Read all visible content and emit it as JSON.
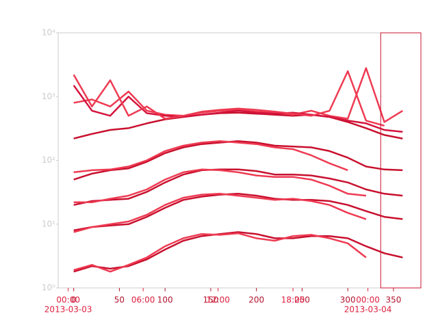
{
  "chart_data": {
    "type": "line",
    "log_y": true,
    "ylim": [
      1,
      10000
    ],
    "yticks": [
      {
        "value": 1,
        "label": "10⁰"
      },
      {
        "value": 10,
        "label": "10¹"
      },
      {
        "value": 100,
        "label": "10²"
      },
      {
        "value": 1000,
        "label": "10³"
      },
      {
        "value": 10000,
        "label": "10⁴"
      }
    ],
    "xlim": [
      -17,
      380
    ],
    "xticks": [
      0,
      50,
      100,
      150,
      200,
      250,
      300,
      350
    ],
    "x2ticks": [
      {
        "value": -6,
        "label": "00:00"
      },
      {
        "value": 76,
        "label": "06:00"
      },
      {
        "value": 158,
        "label": "12:00"
      },
      {
        "value": 240,
        "label": "18:00"
      },
      {
        "value": 322,
        "label": "00:00"
      }
    ],
    "x2dates": [
      {
        "value": -6,
        "label": "2013-03-03"
      },
      {
        "value": 322,
        "label": "2013-03-04"
      }
    ],
    "span": [
      336,
      380
    ],
    "x": [
      0,
      20,
      40,
      60,
      80,
      100,
      120,
      140,
      160,
      180,
      200,
      220,
      240,
      260,
      280,
      300,
      320,
      340,
      360
    ],
    "series": [
      {
        "color": "#c8102e",
        "values": [
          1.8,
          2.2,
          2.0,
          2.2,
          2.8,
          4.0,
          5.5,
          6.5,
          7,
          7.5,
          7,
          6,
          6,
          6.5,
          6.5,
          6,
          4.5,
          3.5,
          3
        ]
      },
      {
        "color": "#ee3a52",
        "values": [
          1.9,
          2.3,
          1.8,
          2.3,
          3.0,
          4.5,
          6.0,
          7.0,
          6.8,
          7.2,
          6.0,
          5.5,
          6.5,
          6.8,
          6.0,
          5.0,
          3.0,
          null,
          null
        ]
      },
      {
        "color": "#c8102e",
        "values": [
          8,
          9,
          9.5,
          10,
          13,
          18,
          24,
          27,
          29,
          30,
          28,
          25,
          24,
          24,
          23,
          20,
          16,
          13,
          12
        ]
      },
      {
        "color": "#ee3a52",
        "values": [
          7.5,
          9,
          10,
          11,
          14,
          20,
          26,
          29,
          30,
          28,
          26,
          24,
          25,
          23,
          20,
          15,
          12,
          null,
          null
        ]
      },
      {
        "color": "#c8102e",
        "values": [
          20,
          23,
          24,
          25,
          32,
          45,
          60,
          70,
          72,
          72,
          68,
          60,
          60,
          58,
          52,
          45,
          35,
          30,
          28
        ]
      },
      {
        "color": "#ee3a52",
        "values": [
          22,
          22,
          25,
          28,
          35,
          50,
          65,
          72,
          70,
          65,
          58,
          55,
          55,
          50,
          40,
          30,
          28,
          null,
          null
        ]
      },
      {
        "color": "#c8102e",
        "values": [
          50,
          62,
          70,
          75,
          95,
          130,
          160,
          180,
          190,
          200,
          190,
          170,
          165,
          160,
          140,
          110,
          80,
          72,
          70
        ]
      },
      {
        "color": "#ee3a52",
        "values": [
          65,
          70,
          72,
          80,
          100,
          140,
          170,
          190,
          200,
          190,
          180,
          160,
          150,
          120,
          90,
          70,
          null,
          null,
          null
        ]
      },
      {
        "color": "#c8102e",
        "values": [
          220,
          260,
          300,
          320,
          380,
          440,
          480,
          520,
          550,
          560,
          540,
          520,
          500,
          520,
          480,
          400,
          320,
          250,
          220
        ]
      },
      {
        "color": "#ee3a52",
        "values": [
          800,
          900,
          700,
          1200,
          600,
          520,
          500,
          560,
          600,
          620,
          580,
          560,
          520,
          600,
          500,
          450,
          2800,
          400,
          600
        ]
      },
      {
        "color": "#d4143c",
        "values": [
          1500,
          600,
          500,
          1000,
          550,
          500,
          480,
          520,
          560,
          600,
          560,
          540,
          560,
          520,
          480,
          420,
          380,
          300,
          280
        ]
      },
      {
        "color": "#ee3a52",
        "values": [
          2200,
          700,
          1800,
          500,
          700,
          450,
          500,
          580,
          620,
          650,
          620,
          580,
          540,
          500,
          600,
          2500,
          420,
          350,
          null
        ]
      }
    ]
  }
}
